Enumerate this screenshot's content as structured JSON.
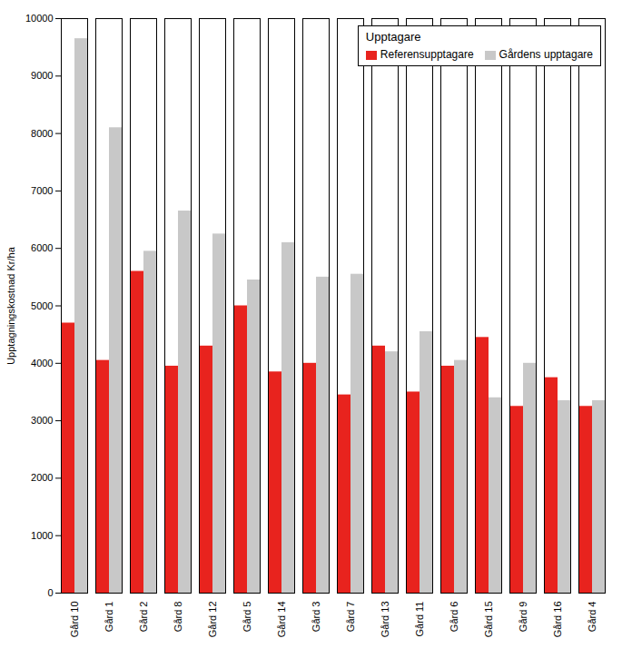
{
  "chart_data": {
    "type": "bar",
    "categories": [
      "Gård 10",
      "Gård 1",
      "Gård 2",
      "Gård 8",
      "Gård 12",
      "Gård 5",
      "Gård 14",
      "Gård 3",
      "Gård 7",
      "Gård 13",
      "Gård 11",
      "Gård 6",
      "Gård 15",
      "Gård 9",
      "Gård 16",
      "Gård 4"
    ],
    "series": [
      {
        "name": "Referensupptagare",
        "color": "#e8231e",
        "values": [
          4700,
          4050,
          5600,
          3950,
          4300,
          5000,
          3850,
          4000,
          3450,
          4300,
          3500,
          3950,
          4450,
          3250,
          3750,
          3250
        ]
      },
      {
        "name": "Gårdens upptagare",
        "color": "#c8c8c8",
        "values": [
          9650,
          8100,
          5950,
          6650,
          6250,
          5450,
          6100,
          5500,
          5550,
          4200,
          4550,
          4050,
          3400,
          4000,
          3350,
          3350
        ]
      }
    ],
    "ylabel": "Upptagningskostnad Kr/ha",
    "legend_title": "Upptagare",
    "ylim": [
      0,
      10000
    ],
    "yticks": [
      0,
      1000,
      2000,
      3000,
      4000,
      5000,
      6000,
      7000,
      8000,
      9000,
      10000
    ],
    "grid": false,
    "legend": "upper right"
  }
}
